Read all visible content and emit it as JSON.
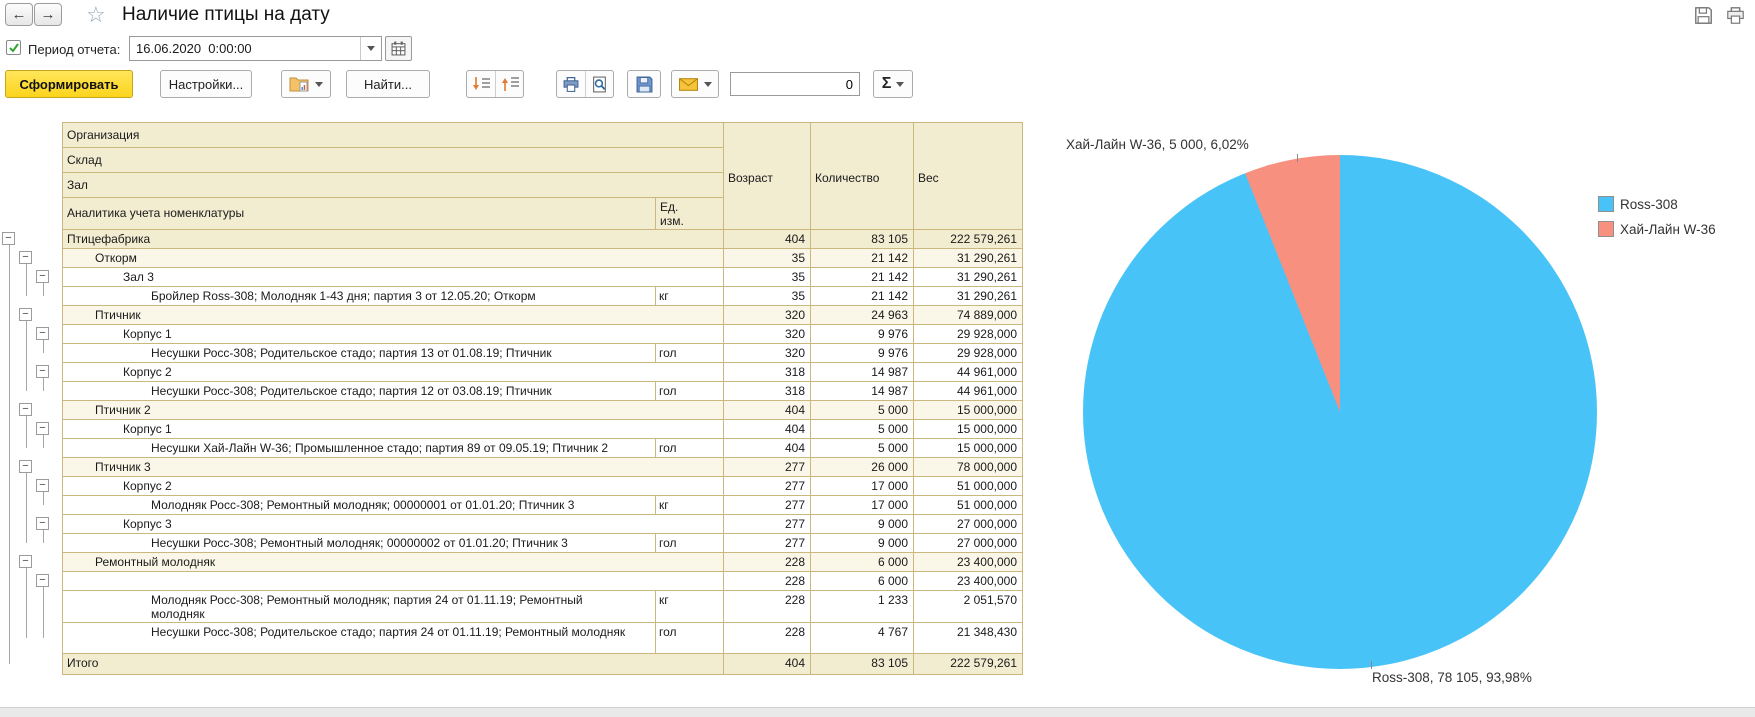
{
  "header": {
    "title": "Наличие птицы на дату"
  },
  "period": {
    "label": "Период отчета:",
    "value": "16.06.2020  0:00:00"
  },
  "toolbar": {
    "generate_label": "Сформировать",
    "settings_label": "Настройки...",
    "find_label": "Найти...",
    "counter_value": "0",
    "sigma_label": "Σ"
  },
  "table": {
    "header": {
      "col1_rows": [
        "Организация",
        "Склад",
        "Зал",
        "Аналитика учета номенклатуры"
      ],
      "unit": "Ед. изм.",
      "age": "Возраст",
      "qty": "Количество",
      "weight": "Вес"
    },
    "rows": [
      {
        "name": "Птицефабрика",
        "level": 1,
        "kind": "org",
        "expander": true,
        "line_to": 21,
        "age": "404",
        "qty": "83 105",
        "weight": "222 579,261"
      },
      {
        "name": "Откорм",
        "level": 2,
        "kind": "wh",
        "expander": true,
        "line_to": 3,
        "age": "35",
        "qty": "21 142",
        "weight": "31 290,261"
      },
      {
        "name": "Зал 3",
        "level": 3,
        "kind": "zal",
        "expander": true,
        "line_to": 3,
        "age": "35",
        "qty": "21 142",
        "weight": "31 290,261"
      },
      {
        "name": "Бройлер Ross-308; Молодняк 1-43 дня; партия 3 от 12.05.20; Откорм",
        "unit": "кг",
        "level": 4,
        "kind": "leaf",
        "age": "35",
        "qty": "21 142",
        "weight": "31 290,261"
      },
      {
        "name": "Птичник",
        "level": 2,
        "kind": "wh",
        "expander": true,
        "line_to": 8,
        "age": "320",
        "qty": "24 963",
        "weight": "74 889,000"
      },
      {
        "name": "Корпус 1",
        "level": 3,
        "kind": "zal",
        "expander": true,
        "line_to": 6,
        "age": "320",
        "qty": "9 976",
        "weight": "29 928,000"
      },
      {
        "name": "Несушки Росс-308; Родительское стадо; партия 13 от 01.08.19; Птичник",
        "unit": "гол",
        "level": 4,
        "kind": "leaf",
        "age": "320",
        "qty": "9 976",
        "weight": "29 928,000"
      },
      {
        "name": "Корпус 2",
        "level": 3,
        "kind": "zal",
        "expander": true,
        "line_to": 8,
        "age": "318",
        "qty": "14 987",
        "weight": "44 961,000"
      },
      {
        "name": "Несушки Росс-308; Родительское стадо; партия 12 от 03.08.19; Птичник",
        "unit": "гол",
        "level": 4,
        "kind": "leaf",
        "age": "318",
        "qty": "14 987",
        "weight": "44 961,000"
      },
      {
        "name": "Птичник 2",
        "level": 2,
        "kind": "wh",
        "expander": true,
        "line_to": 11,
        "age": "404",
        "qty": "5 000",
        "weight": "15 000,000"
      },
      {
        "name": "Корпус 1",
        "level": 3,
        "kind": "zal",
        "expander": true,
        "line_to": 11,
        "age": "404",
        "qty": "5 000",
        "weight": "15 000,000"
      },
      {
        "name": "Несушки Хай-Лайн W-36; Промышленное стадо; партия 89 от 09.05.19; Птичник 2",
        "unit": "гол",
        "level": 4,
        "kind": "leaf",
        "age": "404",
        "qty": "5 000",
        "weight": "15 000,000"
      },
      {
        "name": "Птичник 3",
        "level": 2,
        "kind": "wh",
        "expander": true,
        "line_to": 16,
        "age": "277",
        "qty": "26 000",
        "weight": "78 000,000"
      },
      {
        "name": "Корпус 2",
        "level": 3,
        "kind": "zal",
        "expander": true,
        "line_to": 14,
        "age": "277",
        "qty": "17 000",
        "weight": "51 000,000"
      },
      {
        "name": "Молодняк Росс-308; Ремонтный молодняк; 00000001 от 01.01.20; Птичник 3",
        "unit": "кг",
        "level": 4,
        "kind": "leaf",
        "age": "277",
        "qty": "17 000",
        "weight": "51 000,000"
      },
      {
        "name": "Корпус 3",
        "level": 3,
        "kind": "zal",
        "expander": true,
        "line_to": 16,
        "age": "277",
        "qty": "9 000",
        "weight": "27 000,000"
      },
      {
        "name": "Несушки Росс-308; Ремонтный молодняк; 00000002 от 01.01.20; Птичник 3",
        "unit": "гол",
        "level": 4,
        "kind": "leaf",
        "age": "277",
        "qty": "9 000",
        "weight": "27 000,000"
      },
      {
        "name": "Ремонтный молодняк",
        "level": 2,
        "kind": "wh",
        "expander": true,
        "line_to": 20,
        "age": "228",
        "qty": "6 000",
        "weight": "23 400,000"
      },
      {
        "name": "",
        "level": 3,
        "kind": "zal",
        "expander": true,
        "line_to": 20,
        "age": "228",
        "qty": "6 000",
        "weight": "23 400,000"
      },
      {
        "name": "Молодняк Росс-308; Ремонтный молодняк; партия 24 от 01.11.19; Ремонтный молодняк",
        "unit": "кг",
        "level": 4,
        "kind": "leaf",
        "two_line": true,
        "age": "228",
        "qty": "1 233",
        "weight": "2 051,570"
      },
      {
        "name": "Несушки Росс-308; Родительское стадо; партия 24 от 01.11.19; Ремонтный молодняк",
        "unit": "гол",
        "level": 4,
        "kind": "leaf",
        "two_line": true,
        "age": "228",
        "qty": "4 767",
        "weight": "21 348,430"
      },
      {
        "name": "Итого",
        "level": 1,
        "kind": "total",
        "age": "404",
        "qty": "83 105",
        "weight": "222 579,261"
      }
    ]
  },
  "chart_data": {
    "type": "pie",
    "categories": [
      "Ross-308",
      "Хай-Лайн W-36"
    ],
    "values": [
      78105,
      5000
    ],
    "percents": [
      93.98,
      6.02
    ],
    "colors": [
      "#47C3F7",
      "#F8907F"
    ],
    "data_labels": [
      "Ross-308, 78 105, 93,98%",
      "Хай-Лайн W-36, 5 000, 6,02%"
    ],
    "legend_position": "right",
    "start_angle": "top",
    "direction": "clockwise"
  }
}
